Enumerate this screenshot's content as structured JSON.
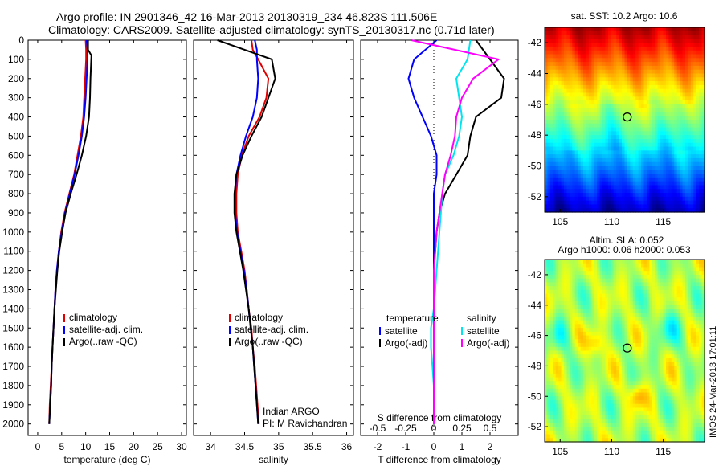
{
  "header": {
    "line1": "Argo profile: IN 2901346_42 16-Mar-2013 20130319_234 46.823S 111.506E",
    "line2": "Climatology: CARS2009. Satellite-adjusted climatology: synTS_20130317.nc (0.71d later)"
  },
  "colors": {
    "climatology": "#e00000",
    "satellite": "#0000ff",
    "argo": "#000000",
    "sat_salinity": "#00e5ee",
    "argo_salinity": "#ff00ff"
  },
  "chart_data": [
    {
      "type": "line",
      "panel": "temperature",
      "xlabel": "temperature (deg C)",
      "ylabel": "",
      "xlim": [
        -2,
        31
      ],
      "ylim": [
        2060,
        0
      ],
      "xticks": [
        0,
        5,
        10,
        15,
        20,
        25,
        30
      ],
      "yticks": [
        0,
        100,
        200,
        300,
        400,
        500,
        600,
        700,
        800,
        900,
        1000,
        1100,
        1200,
        1300,
        1400,
        1500,
        1600,
        1700,
        1800,
        1900,
        2000
      ],
      "legend": [
        "climatology",
        "satellite-adj. clim.",
        "Argo(..raw -QC)"
      ],
      "series": [
        {
          "name": "climatology",
          "color": "#e00000",
          "x": [
            10.0,
            10.1,
            10.1,
            9.9,
            9.7,
            9.5,
            9.0,
            8.3,
            7.6,
            6.6,
            5.6,
            4.9,
            4.4,
            4.0,
            3.7,
            3.5,
            3.3,
            3.1,
            2.9,
            2.7,
            2.5,
            2.4
          ],
          "y": [
            0,
            50,
            100,
            200,
            300,
            400,
            500,
            600,
            700,
            800,
            900,
            1000,
            1100,
            1200,
            1300,
            1400,
            1500,
            1600,
            1700,
            1800,
            1900,
            2000
          ]
        },
        {
          "name": "satellite-adj. clim.",
          "color": "#0000ff",
          "x": [
            10.2,
            10.4,
            10.4,
            10.2,
            10.0,
            9.7,
            9.2,
            8.5,
            7.7,
            6.7,
            5.7,
            5.0,
            4.4,
            4.0,
            3.7,
            3.5,
            3.3,
            3.1,
            2.9,
            2.8,
            2.6,
            2.4
          ],
          "y": [
            0,
            50,
            100,
            200,
            300,
            400,
            500,
            600,
            700,
            800,
            900,
            1000,
            1100,
            1200,
            1300,
            1400,
            1500,
            1600,
            1700,
            1800,
            1900,
            2000
          ]
        },
        {
          "name": "Argo(..raw -QC)",
          "color": "#000000",
          "x": [
            10.5,
            10.5,
            11.2,
            11.0,
            10.9,
            10.7,
            10.1,
            9.2,
            8.1,
            6.9,
            5.8,
            5.1,
            4.5,
            4.1,
            3.8,
            3.5,
            3.3,
            3.1,
            2.9,
            2.8,
            2.6,
            2.4
          ],
          "y": [
            0,
            50,
            80,
            200,
            300,
            400,
            500,
            600,
            700,
            800,
            900,
            1000,
            1100,
            1200,
            1300,
            1400,
            1500,
            1600,
            1700,
            1800,
            1900,
            2000
          ]
        }
      ]
    },
    {
      "type": "line",
      "panel": "salinity",
      "xlabel": "salinity",
      "ylabel": "",
      "xlim": [
        33.75,
        36.1
      ],
      "ylim": [
        2060,
        0
      ],
      "xticks": [
        34,
        34.5,
        35,
        35.5,
        36
      ],
      "legend": [
        "climatology",
        "satellite-adj. clim.",
        "Argo(..raw -QC)"
      ],
      "annotation": [
        "Indian ARGO",
        "PI: M Ravichandran"
      ],
      "series": [
        {
          "name": "climatology",
          "color": "#e00000",
          "x": [
            34.6,
            34.62,
            34.7,
            34.85,
            34.82,
            34.72,
            34.56,
            34.46,
            34.4,
            34.38,
            34.38,
            34.4,
            34.45,
            34.5,
            34.53,
            34.56,
            34.6,
            34.62,
            34.65,
            34.67,
            34.69,
            34.71
          ],
          "y": [
            0,
            50,
            100,
            200,
            300,
            400,
            500,
            600,
            700,
            800,
            900,
            1000,
            1100,
            1200,
            1300,
            1400,
            1500,
            1600,
            1700,
            1800,
            1900,
            2000
          ]
        },
        {
          "name": "satellite-adj. clim.",
          "color": "#0000ff",
          "x": [
            34.65,
            34.68,
            34.68,
            34.7,
            34.68,
            34.62,
            34.52,
            34.44,
            34.38,
            34.36,
            34.36,
            34.39,
            34.44,
            34.49,
            34.53,
            34.56,
            34.59,
            34.62,
            34.64,
            34.66,
            34.68,
            34.7
          ],
          "y": [
            0,
            50,
            100,
            200,
            300,
            400,
            500,
            600,
            700,
            800,
            900,
            1000,
            1100,
            1200,
            1300,
            1400,
            1500,
            1600,
            1700,
            1800,
            1900,
            2000
          ]
        },
        {
          "name": "Argo(..raw -QC)",
          "color": "#000000",
          "x": [
            34.1,
            34.5,
            34.9,
            34.95,
            34.85,
            34.75,
            34.6,
            34.47,
            34.38,
            34.35,
            34.35,
            34.38,
            34.43,
            34.48,
            34.52,
            34.56,
            34.59,
            34.62,
            34.64,
            34.66,
            34.68,
            34.7
          ],
          "y": [
            0,
            50,
            100,
            200,
            300,
            400,
            500,
            600,
            700,
            800,
            900,
            1000,
            1100,
            1200,
            1300,
            1400,
            1500,
            1600,
            1700,
            1800,
            1900,
            2000
          ]
        }
      ]
    },
    {
      "type": "line",
      "panel": "differences",
      "xlabel": "T difference from climatology",
      "xlabel2": "S difference from climatology",
      "xlim": [
        -2.6,
        3.0
      ],
      "ylim": [
        2060,
        0
      ],
      "xticks": [
        -2,
        -1,
        0,
        1,
        2
      ],
      "xticks_S": [
        -0.5,
        -0.25,
        0,
        0.25,
        0.5
      ],
      "legend_groups": {
        "temperature": [
          "satellite",
          "Argo(-adj)"
        ],
        "salinity": [
          "satellite",
          "Argo(-adj)"
        ]
      },
      "series": [
        {
          "name": "temperature satellite",
          "color": "#0000ff",
          "x": [
            0.1,
            -0.7,
            -0.9,
            -0.7,
            -0.4,
            -0.1,
            0.1,
            0.1,
            0.0,
            0.0,
            0.0,
            0.0,
            0.0,
            0.0,
            0.0,
            0.0,
            0.0,
            0.0,
            0.0,
            0.0,
            0.0
          ],
          "y": [
            0,
            100,
            200,
            300,
            400,
            500,
            600,
            700,
            800,
            900,
            1000,
            1100,
            1200,
            1300,
            1400,
            1500,
            1600,
            1700,
            1800,
            1900,
            2000
          ]
        },
        {
          "name": "temperature Argo(-adj)",
          "color": "#000000",
          "x": [
            1.5,
            2.0,
            2.5,
            2.4,
            1.5,
            1.3,
            1.2,
            0.8,
            0.4,
            0.2,
            0.1,
            0.05,
            0.0,
            0.0,
            0.0,
            0.0,
            0.0,
            0.0,
            0.0,
            0.0,
            0.0
          ],
          "y": [
            0,
            100,
            200,
            300,
            400,
            500,
            600,
            700,
            800,
            900,
            1000,
            1100,
            1200,
            1300,
            1400,
            1500,
            1600,
            1700,
            1800,
            1900,
            2000
          ]
        },
        {
          "name": "salinity satellite",
          "color": "#00e5ee",
          "x": [
            1.3,
            1.2,
            0.8,
            0.9,
            1.0,
            0.9,
            0.7,
            0.4,
            0.3,
            0.25,
            0.2,
            0.15,
            0.1,
            0.05,
            0.0,
            -0.1,
            -0.1,
            -0.05,
            0.0,
            0.0,
            0.0
          ],
          "y": [
            0,
            100,
            200,
            300,
            400,
            500,
            600,
            700,
            800,
            900,
            1000,
            1100,
            1200,
            1300,
            1400,
            1500,
            1600,
            1700,
            1800,
            1900,
            2000
          ]
        },
        {
          "name": "salinity Argo(-adj)",
          "color": "#ff00ff",
          "x": [
            -0.8,
            2.3,
            1.4,
            1.0,
            0.8,
            0.75,
            0.6,
            0.4,
            0.3,
            0.2,
            0.1,
            0.05,
            0.0,
            0.0,
            0.0,
            0.0,
            0.0,
            0.0,
            0.0,
            0.0,
            0.0
          ],
          "y": [
            0,
            100,
            200,
            300,
            400,
            500,
            600,
            700,
            800,
            900,
            1000,
            1100,
            1200,
            1300,
            1400,
            1500,
            1600,
            1700,
            1800,
            1900,
            2000
          ]
        }
      ]
    },
    {
      "type": "heatmap",
      "panel": "sst-map",
      "title": "sat. SST: 10.2  Argo: 10.6",
      "xticks": [
        105,
        110,
        115
      ],
      "yticks": [
        -42,
        -44,
        -46,
        -48,
        -50,
        -52
      ],
      "xlim": [
        103.5,
        119
      ],
      "ylim": [
        -53,
        -41
      ],
      "marker": {
        "lon": 111.506,
        "lat": -46.823
      }
    },
    {
      "type": "heatmap",
      "panel": "sla-map",
      "title1": "Altim. SLA: 0.052",
      "title2": "Argo h1000: 0.06 h2000: 0.053",
      "xticks": [
        105,
        110,
        115
      ],
      "yticks": [
        -42,
        -44,
        -46,
        -48,
        -50,
        -52
      ],
      "xlim": [
        103.5,
        119
      ],
      "ylim": [
        -53,
        -41
      ],
      "marker": {
        "lon": 111.506,
        "lat": -46.823
      }
    }
  ],
  "credit": "IMOS 24-Mar-2013 17:01:11"
}
